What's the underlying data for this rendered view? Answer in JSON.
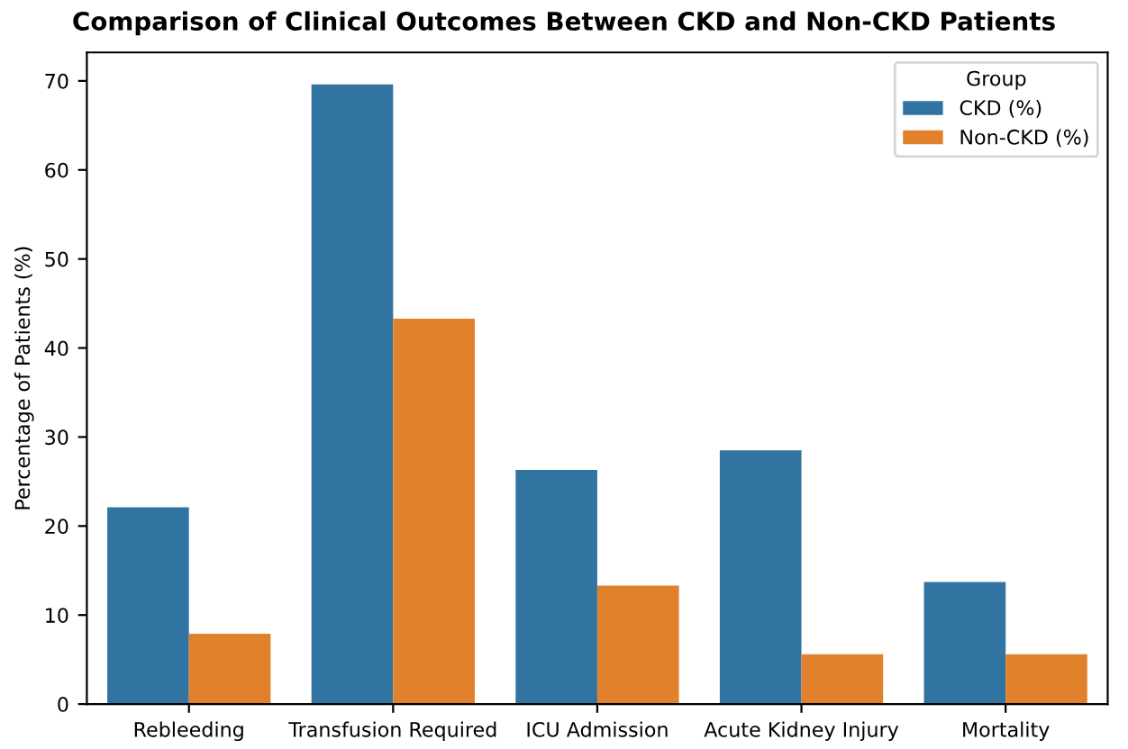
{
  "chart_data": {
    "type": "bar",
    "title": "Comparison of Clinical Outcomes Between CKD and Non-CKD Patients",
    "ylabel": "Percentage of Patients (%)",
    "categories": [
      "Rebleeding",
      "Transfusion Required",
      "ICU Admission",
      "Acute Kidney Injury",
      "Mortality"
    ],
    "series": [
      {
        "name": "CKD (%)",
        "color": "#3274a1",
        "values": [
          22.1,
          69.6,
          26.3,
          28.5,
          13.7
        ]
      },
      {
        "name": "Non-CKD (%)",
        "color": "#e1812c",
        "values": [
          7.9,
          43.3,
          13.3,
          5.6,
          5.6
        ]
      }
    ],
    "legend_title": "Group",
    "legend": "top right",
    "ylim": [
      0,
      73.2
    ],
    "yticks": [
      0,
      10,
      20,
      30,
      40,
      50,
      60,
      70
    ],
    "grid": false
  }
}
